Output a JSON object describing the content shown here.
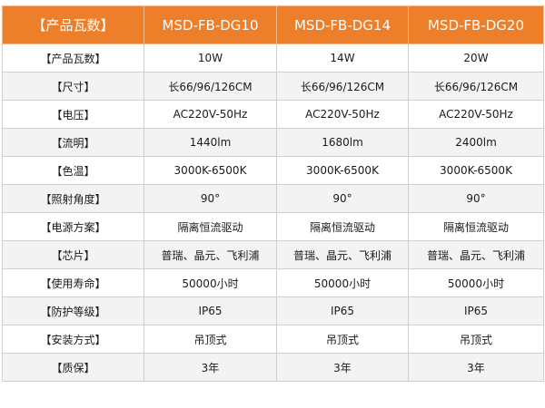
{
  "header": [
    "【产品瓦数】",
    "MSD-FB-DG10",
    "MSD-FB-DG14",
    "MSD-FB-DG20"
  ],
  "rows": [
    {
      "label": "【产品瓦数】",
      "values": [
        "10W",
        "14W",
        "20W"
      ]
    },
    {
      "label": "【尺寸】",
      "values": [
        "长66/96/126CM",
        "长66/96/126CM",
        "长66/96/126CM"
      ]
    },
    {
      "label": "【电压】",
      "values": [
        "AC220V-50Hz",
        "AC220V-50Hz",
        "AC220V-50Hz"
      ]
    },
    {
      "label": "【流明】",
      "values": [
        "1440lm",
        "1680lm",
        "2400lm"
      ]
    },
    {
      "label": "【色温】",
      "values": [
        "3000K-6500K",
        "3000K-6500K",
        "3000K-6500K"
      ]
    },
    {
      "label": "【照射角度】",
      "values": [
        "90°",
        "90°",
        "90°"
      ]
    },
    {
      "label": "【电源方案】",
      "values": [
        "隔离恒流驱动",
        "隔离恒流驱动",
        "隔离恒流驱动"
      ]
    },
    {
      "label": "【芯片】",
      "values": [
        "普瑞、晶元、飞利浦",
        "普瑞、晶元、飞利浦",
        "普瑞、晶元、飞利浦"
      ]
    },
    {
      "label": "【使用寿命】",
      "values": [
        "50000小时",
        "50000小时",
        "50000小时"
      ]
    },
    {
      "label": "【防护等级】",
      "values": [
        "IP65",
        "IP65",
        "IP65"
      ]
    },
    {
      "label": "【安装方式】",
      "values": [
        "吊顶式",
        "吊顶式",
        "吊顶式"
      ]
    },
    {
      "label": "【质保】",
      "values": [
        "3年",
        "3年",
        "3年"
      ]
    }
  ],
  "colors": {
    "header_bg": "#ee7f2a",
    "header_text": "#ffffff",
    "row_alt": "#f3f3f3",
    "border": "#cfcfcf"
  }
}
